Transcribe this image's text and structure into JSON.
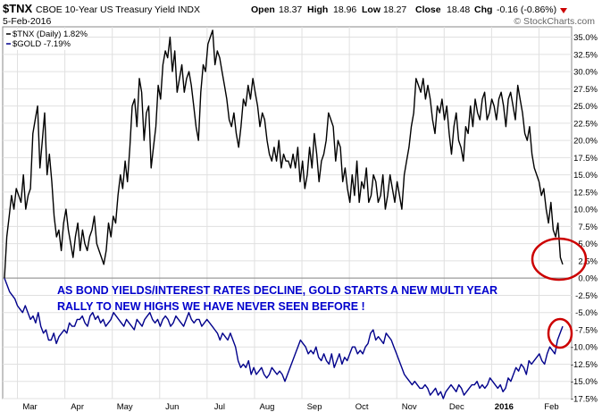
{
  "header": {
    "symbol": "$TNX",
    "name": "CBOE 10-Year US Treasury Yield INDX",
    "date": "5-Feb-2016",
    "brand": "© StockCharts.com",
    "open_label": "Open",
    "open": "18.37",
    "high_label": "High",
    "high": "18.96",
    "low_label": "Low",
    "low": "18.27",
    "close_label": "Close",
    "close": "18.48",
    "chg_label": "Chg",
    "chg": "-0.16 (-0.86%)",
    "chg_icon": "down-triangle-icon"
  },
  "legend": [
    {
      "label": "$TNX (Daily) 1.82%",
      "color": "#000000"
    },
    {
      "label": "$GOLD -7.19%",
      "color": "#00008b"
    }
  ],
  "annotation": {
    "line1": "AS BOND YIELDS/INTEREST RATES DECLINE, GOLD STARTS A NEW MULTI YEAR",
    "line2": "RALLY TO NEW HIGHS WE HAVE NEVER SEEN BEFORE !",
    "color": "#0000cc",
    "circle_color": "#cc0000"
  },
  "colors": {
    "tnx": "#000000",
    "gold": "#00008b",
    "grid": "#e0e0e0"
  },
  "chart_data": {
    "type": "line",
    "y_axis_unit": "percent change",
    "x_tick_labels": [
      "Mar",
      "Apr",
      "May",
      "Jun",
      "Jul",
      "Aug",
      "Sep",
      "Oct",
      "Nov",
      "Dec",
      "2016",
      "Feb"
    ],
    "y_tick_labels": [
      "35.0%",
      "32.5%",
      "30.0%",
      "27.5%",
      "25.0%",
      "22.5%",
      "20.0%",
      "17.5%",
      "15.0%",
      "12.5%",
      "10.0%",
      "7.5%",
      "5.0%",
      "2.5%",
      "0.0%",
      "-2.5%",
      "-5.0%",
      "-7.5%",
      "-10.0%",
      "-12.5%",
      "-15.0%",
      "-17.5%"
    ],
    "ylim": [
      -17.5,
      36.5
    ],
    "grid": true,
    "legend_position": "top-left",
    "series": [
      {
        "name": "$TNX (Daily) 1.82%",
        "values": [
          0,
          6,
          9,
          12,
          10,
          13,
          12,
          11,
          15,
          10,
          12,
          13,
          21,
          23,
          25,
          16,
          20,
          24,
          15,
          18,
          14,
          9,
          6,
          7,
          4,
          8,
          10,
          7,
          5,
          3,
          6,
          8,
          4,
          7,
          5,
          4,
          6,
          7,
          9,
          5,
          4,
          3,
          2,
          4,
          8,
          6,
          9,
          8,
          12,
          15,
          13,
          17,
          14,
          19,
          25,
          26,
          22,
          29,
          27,
          20,
          24,
          25,
          16,
          19,
          22,
          28,
          26,
          31,
          33,
          32,
          35,
          30,
          33,
          27,
          29,
          31,
          27,
          29,
          30,
          28,
          25,
          22,
          20,
          27,
          31,
          30,
          34,
          35,
          36,
          31,
          33,
          32,
          30,
          28,
          26,
          23,
          22,
          24,
          21,
          19,
          22,
          26,
          25,
          28,
          26,
          29,
          27,
          25,
          22,
          24,
          23,
          20,
          18,
          17,
          19,
          17,
          20,
          16,
          18,
          17,
          17,
          16,
          18,
          16,
          19,
          14,
          17,
          13,
          15,
          19,
          16,
          21,
          18,
          14,
          17,
          18,
          20,
          24,
          23,
          22,
          17,
          20,
          19,
          14,
          16,
          13,
          11,
          15,
          12,
          17,
          11,
          14,
          13,
          16,
          11,
          12,
          15,
          14,
          11,
          12,
          15,
          10,
          12,
          15,
          13,
          11,
          14,
          12,
          10,
          15,
          17,
          19,
          22,
          24,
          29,
          28,
          27,
          29,
          26,
          28,
          26,
          23,
          21,
          25,
          24,
          26,
          23,
          25,
          21,
          18,
          22,
          24,
          20,
          19,
          17,
          22,
          21,
          25,
          22,
          26,
          24,
          23,
          26,
          27,
          23,
          24,
          26,
          25,
          23,
          26,
          27,
          25,
          22,
          26,
          27,
          25,
          23,
          28,
          26,
          24,
          21,
          20,
          22,
          18,
          16,
          15,
          14,
          12,
          13,
          10,
          8,
          11,
          7,
          6,
          8,
          3,
          2
        ],
        "color": "#000000"
      },
      {
        "name": "$GOLD -7.19%",
        "values": [
          0,
          -1,
          -2,
          -2.5,
          -3,
          -4,
          -4.5,
          -5,
          -4,
          -5,
          -6,
          -5.5,
          -6.5,
          -5,
          -7,
          -8,
          -7.5,
          -9,
          -9,
          -8,
          -9.5,
          -8.5,
          -8,
          -7.5,
          -8,
          -6.5,
          -7,
          -7,
          -6,
          -6,
          -5.5,
          -6.5,
          -7,
          -5.5,
          -5,
          -6,
          -5.5,
          -6.5,
          -6,
          -7,
          -6.5,
          -6,
          -5,
          -5.5,
          -6,
          -6.5,
          -7,
          -6,
          -6.5,
          -7,
          -7.5,
          -6,
          -6.5,
          -7,
          -6,
          -5.5,
          -5,
          -6,
          -6.5,
          -6,
          -7,
          -6,
          -5.5,
          -6,
          -7,
          -6.5,
          -5.5,
          -6,
          -6.5,
          -7,
          -6,
          -5,
          -6,
          -6.5,
          -6,
          -6,
          -7,
          -6.5,
          -6,
          -6.5,
          -7,
          -7.5,
          -8,
          -9,
          -8,
          -8.5,
          -9,
          -8,
          -9,
          -10,
          -12,
          -13,
          -12.5,
          -13,
          -12,
          -14,
          -13,
          -14,
          -13.5,
          -13,
          -14,
          -14.5,
          -14,
          -13,
          -13.5,
          -14,
          -13.5,
          -14,
          -15,
          -14,
          -13,
          -12,
          -11,
          -10,
          -9,
          -9.5,
          -10,
          -11,
          -10.5,
          -11,
          -10,
          -11.5,
          -12,
          -11,
          -12,
          -12.5,
          -11,
          -13,
          -12,
          -11,
          -12.5,
          -11.5,
          -12,
          -11,
          -10,
          -10,
          -11,
          -10.5,
          -11,
          -10,
          -9.5,
          -8,
          -7.5,
          -9,
          -8.5,
          -9,
          -9.5,
          -8,
          -8.5,
          -9,
          -10,
          -11,
          -12,
          -13,
          -14,
          -14.5,
          -15,
          -15.5,
          -15,
          -15.5,
          -16,
          -16,
          -15.5,
          -16,
          -17,
          -16.5,
          -16,
          -17,
          -16.5,
          -17.5,
          -16.5,
          -16,
          -15.5,
          -16,
          -16.5,
          -15.5,
          -16,
          -17,
          -16.5,
          -16,
          -15.5,
          -15.5,
          -15,
          -16,
          -15.5,
          -16,
          -15.5,
          -14.5,
          -15,
          -15.5,
          -16,
          -15.5,
          -16.5,
          -16,
          -14.5,
          -15,
          -14,
          -13,
          -13.5,
          -12.5,
          -13,
          -14,
          -12,
          -12.5,
          -12,
          -11.5,
          -11,
          -12,
          -12.5,
          -11,
          -10,
          -10.5,
          -11,
          -9,
          -8,
          -7
        ],
        "color": "#00008b"
      }
    ]
  }
}
